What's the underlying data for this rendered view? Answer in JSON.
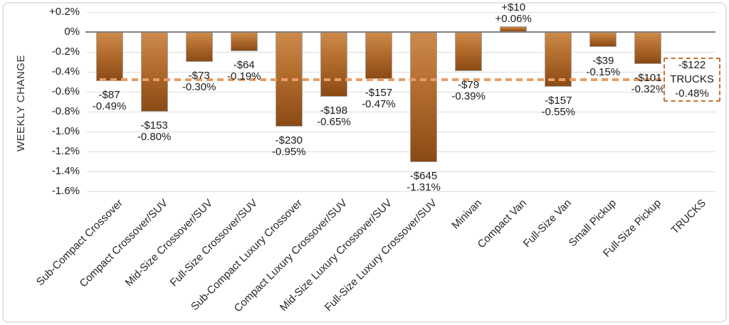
{
  "chart_data": {
    "type": "bar",
    "title": "",
    "ylabel": "WEEKLY CHANGE",
    "xlabel": "",
    "y_axis": {
      "min_pct": -1.6,
      "max_pct": 0.2,
      "step_pct": 0.2,
      "grid": true,
      "ticks": [
        {
          "label": "+0.2%",
          "value": 0.2
        },
        {
          "label": "0%",
          "value": 0.0
        },
        {
          "label": "-0.2%",
          "value": -0.2
        },
        {
          "label": "-0.4%",
          "value": -0.4
        },
        {
          "label": "-0.6%",
          "value": -0.6
        },
        {
          "label": "-0.8%",
          "value": -0.8
        },
        {
          "label": "-1.0%",
          "value": -1.0
        },
        {
          "label": "-1.2%",
          "value": -1.2
        },
        {
          "label": "-1.4%",
          "value": -1.4
        },
        {
          "label": "-1.6%",
          "value": -1.6
        }
      ]
    },
    "categories": [
      "Sub-Compact Crossover",
      "Compact Crossover/SUV",
      "Mid-Size Crossover/SUV",
      "Full-Size Crossover/SUV",
      "Sub-Compact Luxury Crossover",
      "Compact Luxury Crossover/SUV",
      "Mid-Size Luxury Crossover/SUV",
      "Full-Size Luxury Crossover/SUV",
      "Minivan",
      "Compact Van",
      "Full-Size Van",
      "Small Pickup",
      "Full-Size Pickup",
      "TRUCKS"
    ],
    "points": [
      {
        "category": "Sub-Compact Crossover",
        "dollar_label": "-$87",
        "percent_label": "-0.49%",
        "value_pct": -0.49,
        "has_bar": true
      },
      {
        "category": "Compact Crossover/SUV",
        "dollar_label": "-$153",
        "percent_label": "-0.80%",
        "value_pct": -0.8,
        "has_bar": true
      },
      {
        "category": "Mid-Size Crossover/SUV",
        "dollar_label": "-$73",
        "percent_label": "-0.30%",
        "value_pct": -0.3,
        "has_bar": true
      },
      {
        "category": "Full-Size Crossover/SUV",
        "dollar_label": "-$64",
        "percent_label": "-0.19%",
        "value_pct": -0.19,
        "has_bar": true
      },
      {
        "category": "Sub-Compact Luxury Crossover",
        "dollar_label": "-$230",
        "percent_label": "-0.95%",
        "value_pct": -0.95,
        "has_bar": true
      },
      {
        "category": "Compact Luxury Crossover/SUV",
        "dollar_label": "-$198",
        "percent_label": "-0.65%",
        "value_pct": -0.65,
        "has_bar": true
      },
      {
        "category": "Mid-Size Luxury Crossover/SUV",
        "dollar_label": "-$157",
        "percent_label": "-0.47%",
        "value_pct": -0.47,
        "has_bar": true
      },
      {
        "category": "Full-Size Luxury Crossover/SUV",
        "dollar_label": "-$645",
        "percent_label": "-1.31%",
        "value_pct": -1.31,
        "has_bar": true
      },
      {
        "category": "Minivan",
        "dollar_label": "-$79",
        "percent_label": "-0.39%",
        "value_pct": -0.39,
        "has_bar": true
      },
      {
        "category": "Compact Van",
        "dollar_label": "+$10",
        "percent_label": "+0.06%",
        "value_pct": 0.06,
        "has_bar": true
      },
      {
        "category": "Full-Size Van",
        "dollar_label": "-$157",
        "percent_label": "-0.55%",
        "value_pct": -0.55,
        "has_bar": true
      },
      {
        "category": "Small Pickup",
        "dollar_label": "-$39",
        "percent_label": "-0.15%",
        "value_pct": -0.15,
        "has_bar": true
      },
      {
        "category": "Full-Size Pickup",
        "dollar_label": "-$101",
        "percent_label": "-0.32%",
        "value_pct": -0.32,
        "has_bar": true
      },
      {
        "category": "TRUCKS",
        "dollar_label": "-$122",
        "percent_label": "-0.48%",
        "value_pct": -0.48,
        "has_bar": false
      }
    ],
    "reference_line": {
      "name": "TRUCKS",
      "value_pct": -0.48,
      "style": "dashed"
    },
    "annotation_box": {
      "lines": [
        "-$122",
        "TRUCKS",
        "-0.48%"
      ]
    },
    "colors": {
      "bar_gradient_top": "#CD8A4B",
      "bar_gradient_mid": "#B06A2B",
      "bar_gradient_bottom": "#8B4A15",
      "bar_border": "#A6A6A6",
      "dash_line": "#E79D64",
      "box_border": "#CC6E2E",
      "gridline": "#DCDCDC",
      "zero_line": "#7F7F7F",
      "text": "#1A1A1A"
    },
    "legend": "none"
  }
}
